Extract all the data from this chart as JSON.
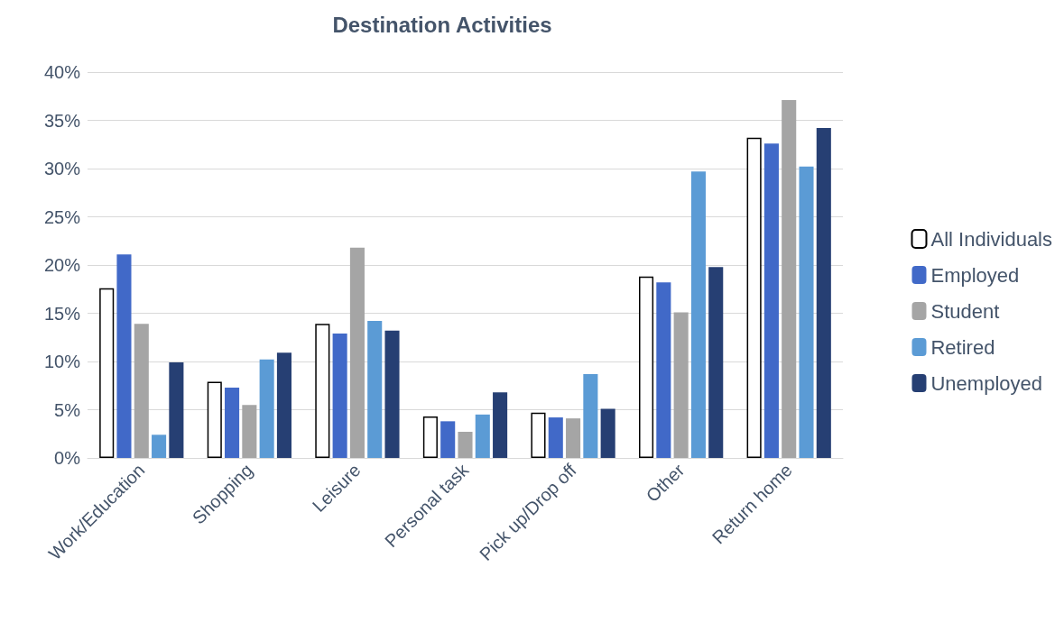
{
  "chart_data": {
    "type": "bar",
    "title": "Destination Activities",
    "categories": [
      "Work/Education",
      "Shopping",
      "Leisure",
      "Personal task",
      "Pick up/Drop off",
      "Other",
      "Return home"
    ],
    "series": [
      {
        "name": "All Individuals",
        "color": "#ffffff",
        "values": [
          17.6,
          7.9,
          13.9,
          4.3,
          4.7,
          18.8,
          33.2
        ]
      },
      {
        "name": "Employed",
        "color": "#4169c8",
        "values": [
          21.1,
          7.3,
          12.9,
          3.8,
          4.2,
          18.2,
          32.6
        ]
      },
      {
        "name": "Student",
        "color": "#a5a5a5",
        "values": [
          13.9,
          5.5,
          21.8,
          2.7,
          4.1,
          15.1,
          37.1
        ]
      },
      {
        "name": "Retired",
        "color": "#5b9bd5",
        "values": [
          2.4,
          10.2,
          14.2,
          4.5,
          8.7,
          29.7,
          30.2
        ]
      },
      {
        "name": "Unemployed",
        "color": "#263f73",
        "values": [
          9.9,
          10.9,
          13.2,
          6.8,
          5.1,
          19.8,
          34.2
        ]
      }
    ],
    "ylim": [
      0,
      40
    ],
    "yticks": [
      {
        "value": 0,
        "label": "0%"
      },
      {
        "value": 5,
        "label": "5%"
      },
      {
        "value": 10,
        "label": "10%"
      },
      {
        "value": 15,
        "label": "15%"
      },
      {
        "value": 20,
        "label": "20%"
      },
      {
        "value": 25,
        "label": "25%"
      },
      {
        "value": 30,
        "label": "30%"
      },
      {
        "value": 35,
        "label": "35%"
      },
      {
        "value": 40,
        "label": "40%"
      }
    ],
    "grid": "y",
    "legend": "right"
  }
}
